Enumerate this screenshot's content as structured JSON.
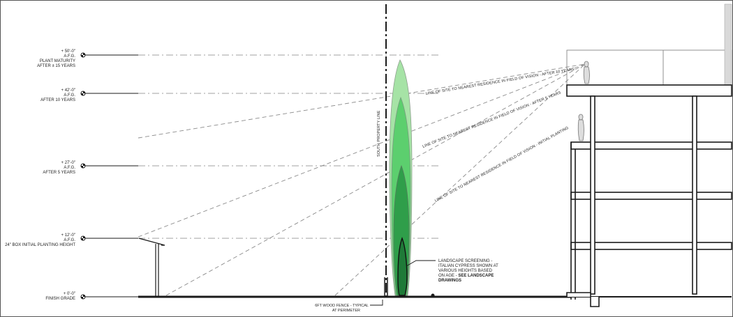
{
  "elevation_markers": [
    {
      "lines": [
        "+ 50'-0\"",
        "A.F.G.",
        "PLANT MATURITY",
        "AFTER ± 15 YEARS"
      ]
    },
    {
      "lines": [
        "+ 42'-0\"",
        "A.F.G.",
        "AFTER 10 YEARS"
      ]
    },
    {
      "lines": [
        "+ 27'-0\"",
        "A.F.G.",
        "AFTER 5 YEARS"
      ]
    },
    {
      "lines": [
        "+ 12'-0\"",
        "A.F.G.",
        "24\" BOX INITIAL PLANTING HEIGHT"
      ]
    },
    {
      "lines": [
        "+ 0'-0\"",
        "FINISH GRADE"
      ]
    }
  ],
  "property_line_label": "SOUTH PROPERTY LINE",
  "sight_lines": [
    "LINE OF SITE TO NEAREST RESIDENCE IN FIELD OF VISION - AFTER 10 YEARS",
    "LINE OF SITE TO NEAREST RESIDENCE IN FIELD OF VISION - AFTER 5 YEARS",
    "LINE OF SITE TO NEAREST RESIDENCE IN FIELD OF VISION - INITIAL PLANTING"
  ],
  "screening_note": {
    "lines": [
      "LANDSCAPE SCREENING -",
      "ITALIAN CYPRESS SHOWN AT",
      "VARIOUS HEIGHTS BASED",
      "ON AGE - "
    ],
    "emphasis_1": "SEE LANDSCAPE",
    "emphasis_2": "DRAWINGS"
  },
  "fence_note": {
    "line_1": "6FT WOOD FENCE - TYPICAL",
    "line_2": "AT PERIMETER"
  },
  "colors": {
    "line": "#1a1a1a",
    "dashed": "#9a9a9a",
    "cypress_light": "#a6e3a6",
    "cypress_mid": "#5ccf6e",
    "cypress_dark": "#2f9e4a",
    "cypress_darkest": "#1f7a38"
  }
}
